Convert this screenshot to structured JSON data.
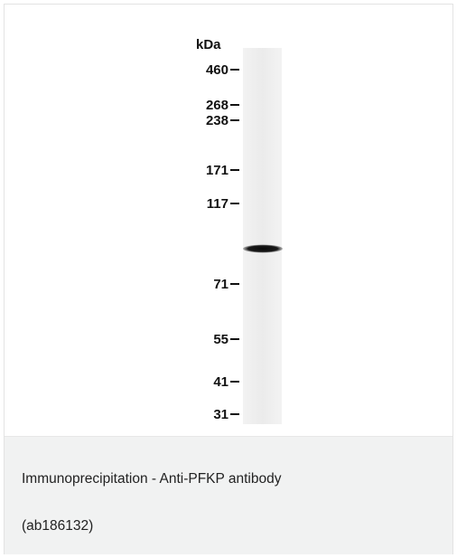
{
  "figure": {
    "unit_label": "kDa",
    "markers": [
      "460",
      "268",
      "238",
      "171",
      "117",
      "71",
      "55",
      "41",
      "31"
    ]
  },
  "caption": {
    "line1": "Immunoprecipitation - Anti-PFKP antibody",
    "line2": "(ab186132)"
  },
  "colors": {
    "caption_background": "#f1f2f2",
    "band": "#111111",
    "lane": "#eeeeee"
  }
}
